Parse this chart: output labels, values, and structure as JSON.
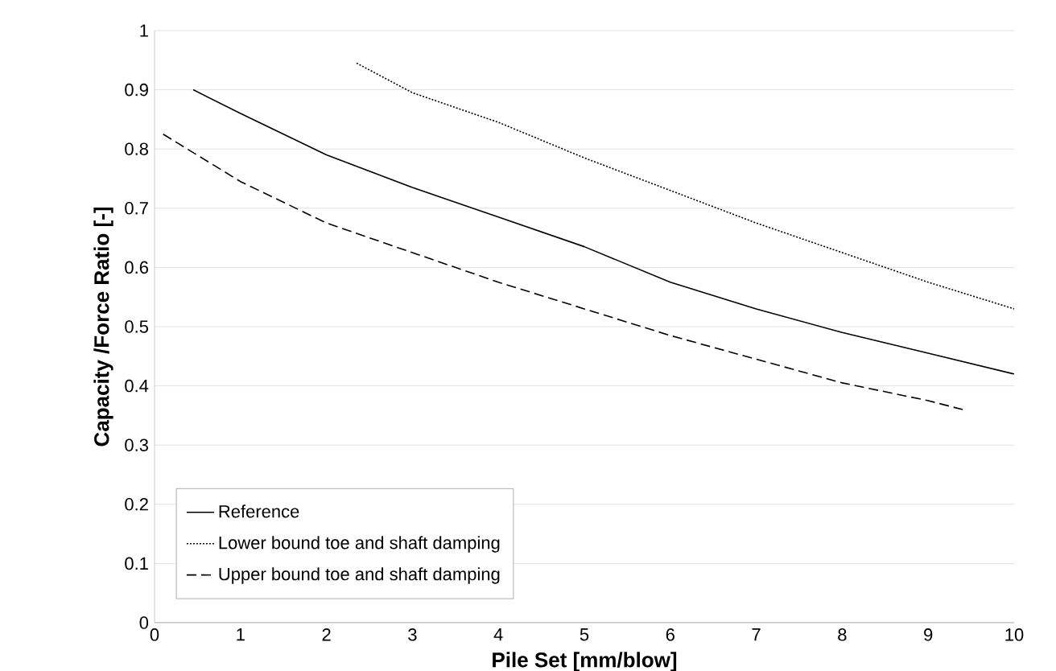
{
  "chart_data": {
    "type": "line",
    "xlabel": "Pile Set [mm/blow]",
    "ylabel": "Capacity /Force Ratio [-]",
    "xlim": [
      0,
      10
    ],
    "ylim": [
      0,
      1
    ],
    "xticks": [
      0,
      1,
      2,
      3,
      4,
      5,
      6,
      7,
      8,
      9,
      10
    ],
    "yticks": [
      0,
      0.1,
      0.2,
      0.3,
      0.4,
      0.5,
      0.6,
      0.7,
      0.8,
      0.9,
      1
    ],
    "grid": "y",
    "legend": "bottom left",
    "marker": "none",
    "series": [
      {
        "name": "Reference",
        "color": "#000000",
        "line_style": "solid",
        "x": [
          0.45,
          1,
          2,
          3,
          4,
          5,
          6,
          7,
          8,
          9,
          10
        ],
        "values": [
          0.9,
          0.86,
          0.79,
          0.735,
          0.685,
          0.635,
          0.575,
          0.53,
          0.49,
          0.455,
          0.42
        ]
      },
      {
        "name": "Lower bound toe and shaft damping",
        "color": "#000000",
        "line_style": "dotted",
        "x": [
          2.35,
          3,
          4,
          5,
          6,
          7,
          8,
          9,
          10
        ],
        "values": [
          0.945,
          0.895,
          0.845,
          0.785,
          0.73,
          0.675,
          0.625,
          0.575,
          0.53
        ]
      },
      {
        "name": "Upper bound toe and shaft damping",
        "color": "#000000",
        "line_style": "dashed",
        "x": [
          0.1,
          1,
          2,
          3,
          4,
          5,
          6,
          7,
          8,
          9,
          9.4
        ],
        "values": [
          0.825,
          0.745,
          0.675,
          0.625,
          0.575,
          0.53,
          0.485,
          0.445,
          0.405,
          0.375,
          0.36
        ]
      }
    ]
  }
}
